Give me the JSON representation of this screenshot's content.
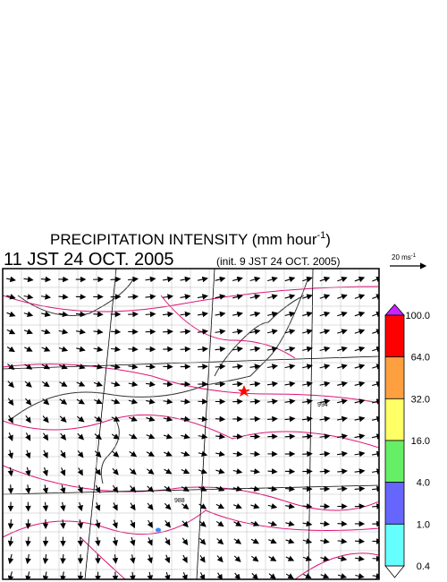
{
  "header": {
    "title": "PRECIPITATION INTENSITY (mm hour",
    "title_sup": "-1",
    "title_end": ")",
    "time": "11 JST 24 OCT. 2005",
    "init": "(init. 9 JST 24 OCT. 2005)"
  },
  "vector_key": {
    "label": "20 ms",
    "sup": "-1"
  },
  "colorbar": {
    "levels": [
      "100.0",
      "64.0",
      "32.0",
      "16.0",
      "4.0",
      "1.0",
      "0.4"
    ],
    "colors": [
      "#ff0000",
      "#ffa040",
      "#ffff66",
      "#66ee66",
      "#6666ff",
      "#66ffff"
    ]
  },
  "map": {
    "contour_labels": [
      "994",
      "988"
    ]
  }
}
